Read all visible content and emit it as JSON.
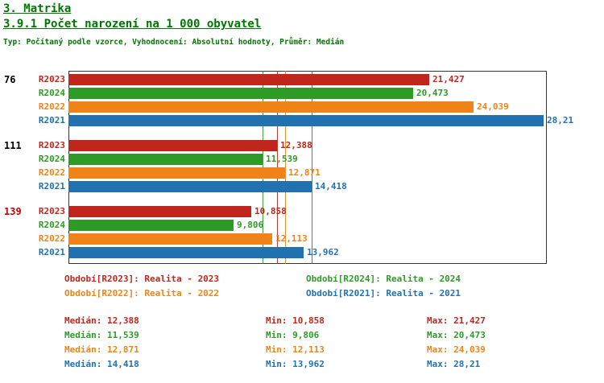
{
  "header": {
    "section_title": "3. Matrika",
    "chart_title": "3.9.1 Počet narození na 1 000 obyvatel",
    "subtitle": "Typ: Počítaný podle vzorce, Vyhodnocení: Absolutní hodnoty, Průměr: Medián",
    "title_color": "#007700"
  },
  "chart_data": {
    "type": "bar",
    "orientation": "horizontal",
    "value_axis_max": 28.4,
    "grid": false,
    "legend_position": "bottom",
    "group_ranks": [
      {
        "rank": "76",
        "color": "#000000"
      },
      {
        "rank": "111",
        "color": "#000000"
      },
      {
        "rank": "139",
        "color": "#cc0000"
      }
    ],
    "series": [
      {
        "name": "R2023",
        "color": "#c0261c",
        "legend_label": "Období[R2023]: Realita - 2023",
        "values": [
          21.427,
          12.388,
          10.858
        ],
        "value_labels": [
          "21,427",
          "12,388",
          "10,858"
        ],
        "median": 12.388,
        "stats": {
          "median": "12,388",
          "min": "10,858",
          "max": "21,427"
        }
      },
      {
        "name": "R2024",
        "color": "#2e9b27",
        "legend_label": "Období[R2024]: Realita - 2024",
        "values": [
          20.473,
          11.539,
          9.806
        ],
        "value_labels": [
          "20,473",
          "11,539",
          "9,806"
        ],
        "median": 11.539,
        "stats": {
          "median": "11,539",
          "min": "9,806",
          "max": "20,473"
        }
      },
      {
        "name": "R2022",
        "color": "#f08418",
        "legend_label": "Období[R2022]: Realita - 2022",
        "values": [
          24.039,
          12.871,
          12.113
        ],
        "value_labels": [
          "24,039",
          "12,871",
          "12,113"
        ],
        "median": 12.871,
        "stats": {
          "median": "12,871",
          "min": "12,113",
          "max": "24,039"
        }
      },
      {
        "name": "R2021",
        "color": "#2272b2",
        "legend_label": "Období[R2021]: Realita - 2021",
        "values": [
          28.21,
          14.418,
          13.962
        ],
        "value_labels": [
          "28,21",
          "14,418",
          "13,962"
        ],
        "median": 14.418,
        "stats": {
          "median": "14,418",
          "min": "13,962",
          "max": "28,21"
        }
      }
    ],
    "stats_labels": {
      "median": "Medián",
      "min": "Min",
      "max": "Max"
    }
  }
}
